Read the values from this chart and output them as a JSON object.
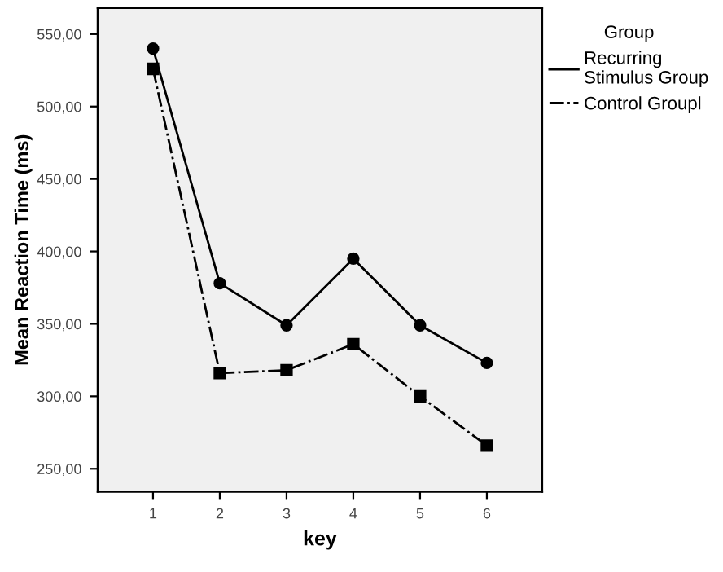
{
  "chart_data": {
    "type": "line",
    "xlabel": "key",
    "ylabel": "Mean Reaction Time (ms)",
    "legend_title": "Group",
    "legend": "right",
    "grid": false,
    "x": [
      1,
      2,
      3,
      4,
      5,
      6
    ],
    "xlim": [
      0.17,
      6.83
    ],
    "xticks": [
      1,
      2,
      3,
      4,
      5,
      6
    ],
    "ylim": [
      234,
      568
    ],
    "yticks": [
      {
        "value": 250,
        "label": "250,00"
      },
      {
        "value": 300,
        "label": "300,00"
      },
      {
        "value": 350,
        "label": "350,00"
      },
      {
        "value": 400,
        "label": "400,00"
      },
      {
        "value": 450,
        "label": "450,00"
      },
      {
        "value": 500,
        "label": "500,00"
      },
      {
        "value": 550,
        "label": "550,00"
      }
    ],
    "series": [
      {
        "name": "Recurring\nStimulus Group",
        "color": "#000000",
        "marker": "circle",
        "line_style": "solid",
        "values": [
          540,
          378,
          349,
          395,
          349,
          323
        ]
      },
      {
        "name": "Control Groupl",
        "color": "#000000",
        "marker": "square",
        "line_style": "dashdot",
        "values": [
          526,
          316,
          318,
          336,
          300,
          266
        ]
      }
    ]
  }
}
